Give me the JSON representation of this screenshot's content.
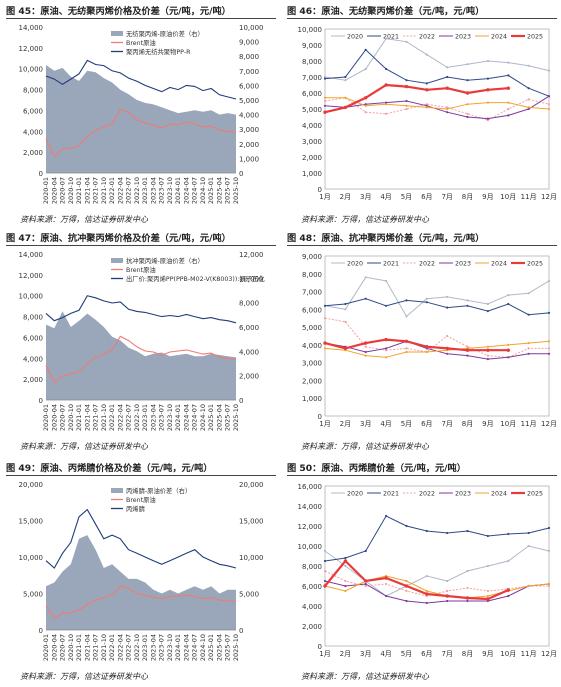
{
  "panels": [
    {
      "title": "图 45：原油、无纺聚丙烯价格及价差（元/吨，元/吨）",
      "source": "资料来源：万得，信达证券研发中心"
    },
    {
      "title": "图 46：原油、无纺聚丙烯价差（元/吨，元/吨）",
      "source": "资料来源：万得，信达证券研发中心"
    },
    {
      "title": "图 47：原油、抗冲聚丙烯价格及价差（元/吨，元/吨）",
      "source": "资料来源：万得，信达证券研发中心"
    },
    {
      "title": "图 48：原油、抗冲聚丙烯价差（元/吨，元/吨）",
      "source": "资料来源：万得，信达证券研发中心"
    },
    {
      "title": "图 49：原油、丙烯腈价格及价差（元/吨，元/吨）",
      "source": "资料来源：万得，信达证券研发中心"
    },
    {
      "title": "图 50：原油、丙烯腈价差（元/吨，元/吨）",
      "source": "资料来源：万得，信达证券研发中心"
    }
  ],
  "chart_data": [
    {
      "type": "area",
      "ylim": [
        0,
        14000
      ],
      "y2lim": [
        0,
        10000
      ],
      "yticks": [
        "0",
        "2,000",
        "4,000",
        "6,000",
        "8,000",
        "10,000",
        "12,000",
        "14,000"
      ],
      "y2ticks": [
        "0",
        "1,000",
        "2,000",
        "3,000",
        "4,000",
        "5,000",
        "6,000",
        "7,000",
        "8,000",
        "9,000",
        "10,000"
      ],
      "xticks": [
        "2020-01",
        "2020-04",
        "2020-07",
        "2020-10",
        "2021-01",
        "2021-04",
        "2021-07",
        "2021-10",
        "2022-01",
        "2022-04",
        "2022-07",
        "2022-10",
        "2023-01",
        "2023-04",
        "2023-07",
        "2023-10",
        "2024-01",
        "2024-04",
        "2024-07",
        "2024-10",
        "2025-01",
        "2025-04",
        "2025-07",
        "2025-10"
      ],
      "legend": [
        "无纺聚丙烯-原油价差（右）",
        "Brent原油",
        "聚丙烯无纺共聚物PP-R"
      ],
      "colors": {
        "area": "#9aa6ba",
        "brent": "#f07b73",
        "product": "#1f3d7a"
      },
      "spread_right": [
        7400,
        7000,
        7200,
        6600,
        6300,
        7000,
        6900,
        6500,
        6200,
        5700,
        5400,
        5000,
        4800,
        4700,
        4500,
        4300,
        4100,
        4200,
        4300,
        4200,
        4300,
        4000,
        4100,
        4000
      ],
      "brent": [
        3300,
        1600,
        2300,
        2400,
        2600,
        3500,
        4100,
        4400,
        4700,
        6100,
        5800,
        5100,
        4800,
        4600,
        4300,
        4700,
        4600,
        4900,
        4700,
        4400,
        4500,
        4100,
        4000,
        3900
      ],
      "product": [
        9300,
        9000,
        8500,
        9000,
        9500,
        10800,
        10400,
        10300,
        9800,
        9600,
        9100,
        8800,
        8400,
        8100,
        7800,
        8200,
        8000,
        8400,
        8300,
        7900,
        8100,
        7500,
        7300,
        7100
      ]
    },
    {
      "type": "line",
      "ylim": [
        0,
        10000
      ],
      "yticks": [
        "0",
        "1,000",
        "2,000",
        "3,000",
        "4,000",
        "5,000",
        "6,000",
        "7,000",
        "8,000",
        "9,000",
        "10,000"
      ],
      "xticks": [
        "1月",
        "2月",
        "3月",
        "4月",
        "5月",
        "6月",
        "7月",
        "8月",
        "9月",
        "10月",
        "11月",
        "12月"
      ],
      "legend": [
        "2020",
        "2021",
        "2022",
        "2023",
        "2024",
        "2025"
      ],
      "series": [
        {
          "name": "2020",
          "color": "#b0b8c8",
          "values": [
            7000,
            6800,
            7500,
            9400,
            9200,
            8400,
            7600,
            7800,
            8000,
            7900,
            7700,
            7400
          ]
        },
        {
          "name": "2021",
          "color": "#2d4a88",
          "values": [
            6900,
            7000,
            8700,
            7500,
            6800,
            6600,
            7000,
            6800,
            6900,
            7100,
            6300,
            5800
          ]
        },
        {
          "name": "2022",
          "color": "#f5a0a0",
          "values": [
            5500,
            5700,
            4800,
            4700,
            5000,
            5300,
            5100,
            4700,
            4300,
            5000,
            5600,
            5300
          ]
        },
        {
          "name": "2023",
          "color": "#7d3aa0",
          "values": [
            5200,
            5100,
            5300,
            5400,
            5500,
            5200,
            4800,
            4500,
            4400,
            4600,
            5000,
            5800
          ]
        },
        {
          "name": "2024",
          "color": "#f3a32c",
          "values": [
            5700,
            5700,
            5200,
            5300,
            5200,
            5100,
            5000,
            5300,
            5400,
            5400,
            5100,
            5000
          ]
        },
        {
          "name": "2025",
          "color": "#e83a3a",
          "values": [
            4800,
            5100,
            5700,
            6500,
            6400,
            6200,
            6300,
            6000,
            6200,
            6300,
            null,
            null
          ]
        }
      ]
    },
    {
      "type": "area",
      "ylim": [
        0,
        14000
      ],
      "y2lim": [
        0,
        12000
      ],
      "yticks": [
        "0",
        "2,000",
        "4,000",
        "6,000",
        "8,000",
        "10,000",
        "12,000",
        "14,000"
      ],
      "y2ticks": [
        "0",
        "2,000",
        "4,000",
        "6,000",
        "8,000",
        "10,000",
        "12,000"
      ],
      "xticks": [
        "2020-01",
        "2020-04",
        "2020-07",
        "2020-10",
        "2021-01",
        "2021-04",
        "2021-07",
        "2021-10",
        "2022-01",
        "2022-04",
        "2022-07",
        "2022-10",
        "2023-01",
        "2023-04",
        "2023-07",
        "2023-10",
        "2024-01",
        "2024-04",
        "2024-07",
        "2024-10",
        "2025-01",
        "2025-04",
        "2025-07",
        "2025-10"
      ],
      "legend": [
        "抗冲聚丙烯-原油价差（右）",
        "Brent原油",
        "出厂价:聚丙烯PP(PPB-M02-V(K8003)):扬子石化"
      ],
      "colors": {
        "area": "#9aa6ba",
        "brent": "#f07b73",
        "product": "#1f3d7a"
      },
      "spread_right": [
        6200,
        5900,
        7300,
        6000,
        6500,
        7100,
        6600,
        6000,
        5200,
        4900,
        4300,
        4000,
        3600,
        3800,
        3900,
        3600,
        3700,
        3800,
        3600,
        3600,
        3800,
        3700,
        3600,
        3500
      ],
      "brent": [
        3300,
        1700,
        2300,
        2500,
        2700,
        3500,
        4100,
        4400,
        4800,
        6100,
        5700,
        5100,
        4700,
        4600,
        4300,
        4600,
        4700,
        4800,
        4600,
        4400,
        4500,
        4100,
        4000,
        3900
      ],
      "product": [
        8300,
        7600,
        7900,
        8300,
        8600,
        10000,
        9800,
        9500,
        9300,
        9400,
        8700,
        8500,
        8400,
        8200,
        8000,
        8100,
        8000,
        8200,
        8000,
        7800,
        7900,
        7700,
        7600,
        7400
      ]
    },
    {
      "type": "line",
      "ylim": [
        0,
        9000
      ],
      "yticks": [
        "0",
        "1,000",
        "2,000",
        "3,000",
        "4,000",
        "5,000",
        "6,000",
        "7,000",
        "8,000",
        "9,000"
      ],
      "xticks": [
        "1月",
        "2月",
        "3月",
        "4月",
        "5月",
        "6月",
        "7月",
        "8月",
        "9月",
        "10月",
        "11月",
        "12月"
      ],
      "legend": [
        "2020",
        "2021",
        "2022",
        "2023",
        "2024",
        "2025"
      ],
      "series": [
        {
          "name": "2020",
          "color": "#b0b8c8",
          "values": [
            6200,
            6000,
            7800,
            7600,
            5600,
            6600,
            6700,
            6500,
            6300,
            6800,
            6900,
            7600
          ]
        },
        {
          "name": "2021",
          "color": "#2d4a88",
          "values": [
            6200,
            6300,
            6600,
            6200,
            6500,
            6400,
            6100,
            6200,
            5900,
            6300,
            5700,
            5800
          ]
        },
        {
          "name": "2022",
          "color": "#f5a0a0",
          "values": [
            5500,
            5300,
            3900,
            3700,
            3800,
            3600,
            4500,
            3900,
            3400,
            3300,
            3800,
            3800
          ]
        },
        {
          "name": "2023",
          "color": "#7d3aa0",
          "values": [
            4100,
            3900,
            3600,
            3800,
            4200,
            3800,
            3500,
            3400,
            3200,
            3300,
            3500,
            3500
          ]
        },
        {
          "name": "2024",
          "color": "#f3a32c",
          "values": [
            3800,
            3700,
            3400,
            3300,
            3600,
            3600,
            3700,
            3800,
            3900,
            4000,
            4100,
            4200
          ]
        },
        {
          "name": "2025",
          "color": "#e83a3a",
          "values": [
            4100,
            3800,
            4100,
            4300,
            4200,
            3900,
            3800,
            3700,
            3700,
            3700,
            null,
            null
          ]
        }
      ]
    },
    {
      "type": "area",
      "ylim": [
        0,
        20000
      ],
      "y2lim": [
        0,
        20000
      ],
      "yticks": [
        "0",
        "5,000",
        "10,000",
        "15,000",
        "20,000"
      ],
      "y2ticks": [
        "0",
        "5,000",
        "10,000",
        "15,000",
        "20,000"
      ],
      "xticks": [
        "2020-01",
        "2020-04",
        "2020-07",
        "2020-10",
        "2021-01",
        "2021-04",
        "2021-07",
        "2021-10",
        "2022-01",
        "2022-04",
        "2022-07",
        "2022-10",
        "2023-01",
        "2023-04",
        "2023-07",
        "2023-10",
        "2024-01",
        "2024-04",
        "2024-07",
        "2024-10",
        "2025-01",
        "2025-04",
        "2025-07",
        "2025-10"
      ],
      "legend": [
        "丙烯腈-原油价差（右）",
        "Brent原油",
        "丙烯腈"
      ],
      "colors": {
        "area": "#9aa6ba",
        "brent": "#f07b73",
        "product": "#1f3d7a"
      },
      "spread_right": [
        6000,
        6500,
        8000,
        9000,
        12500,
        13000,
        11000,
        8500,
        9000,
        8000,
        7000,
        7000,
        6500,
        5500,
        5000,
        5500,
        5000,
        5500,
        6000,
        5500,
        6000,
        5000,
        5500,
        5500
      ],
      "brent": [
        3300,
        1600,
        2300,
        2400,
        2700,
        3500,
        4100,
        4400,
        4800,
        6000,
        5700,
        5000,
        4700,
        4500,
        4300,
        4600,
        4700,
        4800,
        4600,
        4300,
        4400,
        4100,
        4000,
        3900
      ],
      "product": [
        9500,
        8500,
        10500,
        12000,
        15500,
        16500,
        14500,
        12500,
        13000,
        12500,
        11000,
        10500,
        10000,
        9500,
        9000,
        9500,
        10000,
        10500,
        11000,
        10000,
        9500,
        9000,
        8800,
        8500
      ]
    },
    {
      "type": "line",
      "ylim": [
        0,
        16000
      ],
      "yticks": [
        "0",
        "2,000",
        "4,000",
        "6,000",
        "8,000",
        "10,000",
        "12,000",
        "14,000",
        "16,000"
      ],
      "xticks": [
        "1月",
        "2月",
        "3月",
        "4月",
        "5月",
        "6月",
        "7月",
        "8月",
        "9月",
        "10月",
        "11月",
        "12月"
      ],
      "legend": [
        "2020",
        "2021",
        "2022",
        "2023",
        "2024",
        "2025"
      ],
      "series": [
        {
          "name": "2020",
          "color": "#b0b8c8",
          "values": [
            9500,
            8000,
            6500,
            5000,
            6000,
            7000,
            6500,
            7500,
            8000,
            8500,
            10000,
            9500
          ]
        },
        {
          "name": "2021",
          "color": "#2d4a88",
          "values": [
            8500,
            8800,
            9500,
            13000,
            12000,
            11500,
            11300,
            11500,
            11000,
            11200,
            11300,
            11800
          ]
        },
        {
          "name": "2022",
          "color": "#f5a0a0",
          "values": [
            7500,
            6500,
            6000,
            6200,
            5500,
            5000,
            5500,
            5800,
            5500,
            5700,
            6000,
            6000
          ]
        },
        {
          "name": "2023",
          "color": "#7d3aa0",
          "values": [
            6500,
            6000,
            6200,
            5000,
            4500,
            4300,
            4500,
            4500,
            4500,
            5000,
            6000,
            6200
          ]
        },
        {
          "name": "2024",
          "color": "#f3a32c",
          "values": [
            6000,
            5500,
            6500,
            7000,
            6500,
            5500,
            5000,
            4800,
            5000,
            5500,
            6000,
            6200
          ]
        },
        {
          "name": "2025",
          "color": "#e83a3a",
          "values": [
            6000,
            8500,
            6500,
            6800,
            6000,
            5200,
            5000,
            4800,
            4700,
            5600,
            null,
            null
          ]
        }
      ]
    }
  ]
}
